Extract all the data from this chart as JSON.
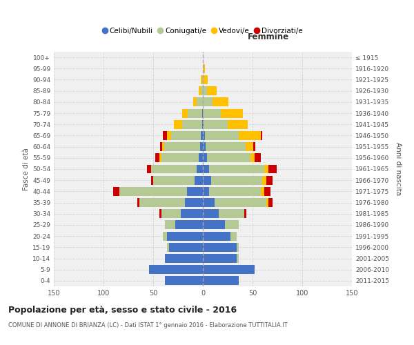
{
  "age_groups": [
    "0-4",
    "5-9",
    "10-14",
    "15-19",
    "20-24",
    "25-29",
    "30-34",
    "35-39",
    "40-44",
    "45-49",
    "50-54",
    "55-59",
    "60-64",
    "65-69",
    "70-74",
    "75-79",
    "80-84",
    "85-89",
    "90-94",
    "95-99",
    "100+"
  ],
  "birth_years": [
    "2011-2015",
    "2006-2010",
    "2001-2005",
    "1996-2000",
    "1991-1995",
    "1986-1990",
    "1981-1985",
    "1976-1980",
    "1971-1975",
    "1966-1970",
    "1961-1965",
    "1956-1960",
    "1951-1955",
    "1946-1950",
    "1941-1945",
    "1936-1940",
    "1931-1935",
    "1926-1930",
    "1921-1925",
    "1916-1920",
    "≤ 1915"
  ],
  "males": {
    "celibi": [
      38,
      54,
      38,
      34,
      36,
      28,
      22,
      18,
      16,
      8,
      6,
      4,
      3,
      2,
      1,
      1,
      0,
      0,
      0,
      0,
      0
    ],
    "coniugati": [
      0,
      0,
      0,
      2,
      4,
      10,
      20,
      46,
      68,
      42,
      46,
      38,
      36,
      30,
      20,
      14,
      6,
      2,
      1,
      0,
      0
    ],
    "vedovi": [
      0,
      0,
      0,
      0,
      0,
      0,
      0,
      0,
      0,
      0,
      0,
      2,
      2,
      4,
      8,
      6,
      4,
      2,
      1,
      0,
      0
    ],
    "divorziati": [
      0,
      0,
      0,
      0,
      0,
      0,
      2,
      2,
      6,
      2,
      4,
      4,
      2,
      4,
      0,
      0,
      0,
      0,
      0,
      0,
      0
    ]
  },
  "females": {
    "nubili": [
      36,
      52,
      34,
      34,
      28,
      22,
      16,
      12,
      6,
      8,
      6,
      4,
      3,
      2,
      1,
      0,
      0,
      0,
      0,
      0,
      0
    ],
    "coniugate": [
      0,
      0,
      2,
      2,
      6,
      14,
      26,
      52,
      52,
      52,
      56,
      44,
      40,
      34,
      24,
      18,
      10,
      4,
      1,
      1,
      0
    ],
    "vedove": [
      0,
      0,
      0,
      0,
      0,
      0,
      0,
      2,
      4,
      4,
      4,
      4,
      8,
      22,
      20,
      22,
      16,
      10,
      4,
      1,
      0
    ],
    "divorziate": [
      0,
      0,
      0,
      0,
      0,
      0,
      2,
      4,
      6,
      6,
      8,
      6,
      2,
      2,
      0,
      0,
      0,
      0,
      0,
      0,
      0
    ]
  },
  "colors": {
    "celibi_nubili": "#4472c4",
    "coniugati": "#b5c994",
    "vedovi": "#ffc000",
    "divorziati": "#cc0000"
  },
  "title": "Popolazione per età, sesso e stato civile - 2016",
  "subtitle": "COMUNE DI ANNONE DI BRIANZA (LC) - Dati ISTAT 1° gennaio 2016 - Elaborazione TUTTITALIA.IT",
  "xlabel_right": "Femmine",
  "ylabel_left": "Fasce di età",
  "ylabel_right": "Anni di nascita",
  "xlim": 150,
  "bg_color": "#ffffff",
  "grid_color": "#cccccc",
  "legend_labels": [
    "Celibi/Nubili",
    "Coniugati/e",
    "Vedovi/e",
    "Divorziati/e"
  ],
  "legend_marker_colors": [
    "#4472c4",
    "#b5c994",
    "#ffc000",
    "#cc0000"
  ]
}
